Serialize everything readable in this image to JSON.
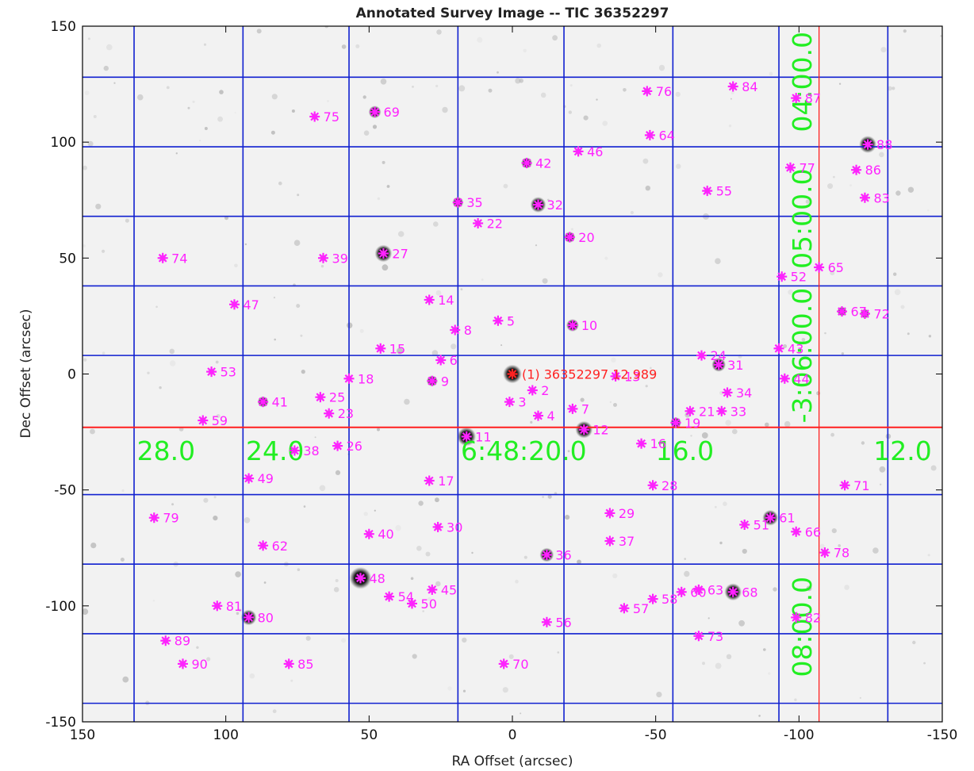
{
  "chart_data": {
    "type": "scatter",
    "title": "Annotated Survey Image -- TIC 36352297",
    "xlabel": "RA Offset (arcsec)",
    "ylabel": "Dec Offset (arcsec)",
    "xlim": [
      150,
      -150
    ],
    "ylim": [
      -150,
      150
    ],
    "x_reversed": true,
    "x_ticks": [
      150,
      100,
      50,
      0,
      -50,
      -100,
      -150
    ],
    "x_tick_labels": [
      "150",
      "100",
      "50",
      "0",
      "-50",
      "-100",
      "-150"
    ],
    "y_ticks": [
      150,
      100,
      50,
      0,
      -50,
      -100,
      -150
    ],
    "y_tick_labels": [
      "150",
      "100",
      "50",
      "0",
      "-50",
      "-100",
      "-150"
    ],
    "background": "grayscale sky survey image",
    "colors": {
      "sky": "#f2f2f2",
      "source_star": "#ff22ff",
      "target_star": "#ff2222",
      "ra_dec_grid": "#1020d0",
      "crosshair": "#ff2020",
      "grid_text": "#22ee22"
    },
    "target": {
      "label": "(1) 36352297 12.989",
      "x": 0,
      "y": 0
    },
    "crosshair": {
      "x": -107,
      "y": -23
    },
    "ra_grid_lines_x": [
      132,
      94,
      57,
      19,
      -18,
      -56,
      -93,
      -131
    ],
    "ra_grid_labels": [
      {
        "text": "28.0",
        "x": 131
      },
      {
        "text": "24.0",
        "x": 93
      },
      {
        "text": "6:48:20.0",
        "x": 18
      },
      {
        "text": "16.0",
        "x": -50
      },
      {
        "text": "12.0",
        "x": -126
      }
    ],
    "dec_grid_lines_y": [
      128,
      98,
      68,
      38,
      8,
      -52,
      -82,
      -112,
      -142
    ],
    "dec_grid_labels": [
      {
        "text": "04:00.0",
        "y": 126
      },
      {
        "text": "05:00.0",
        "y": 67
      },
      {
        "text": "-3:06:00.0",
        "y": 8
      },
      {
        "text": "08:00.0",
        "y": -109
      }
    ],
    "stars": [
      {
        "label": "2",
        "x": -7,
        "y": -7
      },
      {
        "label": "3",
        "x": 1,
        "y": -12
      },
      {
        "label": "4",
        "x": -9,
        "y": -18
      },
      {
        "label": "5",
        "x": 5,
        "y": 23
      },
      {
        "label": "6",
        "x": 25,
        "y": 6
      },
      {
        "label": "7",
        "x": -21,
        "y": -15
      },
      {
        "label": "8",
        "x": 20,
        "y": 19
      },
      {
        "label": "9",
        "x": 28,
        "y": -3
      },
      {
        "label": "10",
        "x": -21,
        "y": 21
      },
      {
        "label": "11",
        "x": 16,
        "y": -27
      },
      {
        "label": "12",
        "x": -25,
        "y": -24
      },
      {
        "label": "13",
        "x": -36,
        "y": -1
      },
      {
        "label": "14",
        "x": 29,
        "y": 32
      },
      {
        "label": "15",
        "x": 46,
        "y": 11
      },
      {
        "label": "16",
        "x": -45,
        "y": -30
      },
      {
        "label": "17",
        "x": 29,
        "y": -46
      },
      {
        "label": "18",
        "x": 57,
        "y": -2
      },
      {
        "label": "19",
        "x": -57,
        "y": -21
      },
      {
        "label": "20",
        "x": -20,
        "y": 59
      },
      {
        "label": "21",
        "x": -62,
        "y": -16
      },
      {
        "label": "22",
        "x": 12,
        "y": 65
      },
      {
        "label": "23",
        "x": 64,
        "y": -17
      },
      {
        "label": "24",
        "x": -66,
        "y": 8
      },
      {
        "label": "25",
        "x": 67,
        "y": -10
      },
      {
        "label": "26",
        "x": 61,
        "y": -31
      },
      {
        "label": "27",
        "x": 45,
        "y": 52
      },
      {
        "label": "28",
        "x": -49,
        "y": -48
      },
      {
        "label": "29",
        "x": -34,
        "y": -60
      },
      {
        "label": "30",
        "x": 26,
        "y": -66
      },
      {
        "label": "31",
        "x": -72,
        "y": 4
      },
      {
        "label": "32",
        "x": -9,
        "y": 73
      },
      {
        "label": "33",
        "x": -73,
        "y": -16
      },
      {
        "label": "34",
        "x": -75,
        "y": -8
      },
      {
        "label": "35",
        "x": 19,
        "y": 74
      },
      {
        "label": "36",
        "x": -12,
        "y": -78
      },
      {
        "label": "37",
        "x": -34,
        "y": -72
      },
      {
        "label": "38",
        "x": 76,
        "y": -33
      },
      {
        "label": "39",
        "x": 66,
        "y": 50
      },
      {
        "label": "40",
        "x": 50,
        "y": -69
      },
      {
        "label": "41",
        "x": 87,
        "y": -12
      },
      {
        "label": "42",
        "x": -5,
        "y": 91
      },
      {
        "label": "43",
        "x": -93,
        "y": 11
      },
      {
        "label": "44",
        "x": -95,
        "y": -2
      },
      {
        "label": "45",
        "x": 28,
        "y": -93
      },
      {
        "label": "46",
        "x": -23,
        "y": 96
      },
      {
        "label": "47",
        "x": 97,
        "y": 30
      },
      {
        "label": "48",
        "x": 53,
        "y": -88
      },
      {
        "label": "49",
        "x": 92,
        "y": -45
      },
      {
        "label": "50",
        "x": 35,
        "y": -99
      },
      {
        "label": "51",
        "x": -81,
        "y": -65
      },
      {
        "label": "52",
        "x": -94,
        "y": 42
      },
      {
        "label": "53",
        "x": 105,
        "y": 1
      },
      {
        "label": "54",
        "x": 43,
        "y": -96
      },
      {
        "label": "55",
        "x": -68,
        "y": 79
      },
      {
        "label": "56",
        "x": -12,
        "y": -107
      },
      {
        "label": "57",
        "x": -39,
        "y": -101
      },
      {
        "label": "58",
        "x": -49,
        "y": -97
      },
      {
        "label": "59",
        "x": 108,
        "y": -20
      },
      {
        "label": "60",
        "x": -59,
        "y": -94
      },
      {
        "label": "61",
        "x": -90,
        "y": -62
      },
      {
        "label": "62",
        "x": 87,
        "y": -74
      },
      {
        "label": "63",
        "x": -65,
        "y": -93
      },
      {
        "label": "64",
        "x": -48,
        "y": 103
      },
      {
        "label": "65",
        "x": -107,
        "y": 46
      },
      {
        "label": "66",
        "x": -99,
        "y": -68
      },
      {
        "label": "67",
        "x": -115,
        "y": 27
      },
      {
        "label": "68",
        "x": -77,
        "y": -94
      },
      {
        "label": "69",
        "x": 48,
        "y": 113
      },
      {
        "label": "70",
        "x": 3,
        "y": -125
      },
      {
        "label": "71",
        "x": -116,
        "y": -48
      },
      {
        "label": "72",
        "x": -123,
        "y": 26
      },
      {
        "label": "73",
        "x": -65,
        "y": -113
      },
      {
        "label": "74",
        "x": 122,
        "y": 50
      },
      {
        "label": "75",
        "x": 69,
        "y": 111
      },
      {
        "label": "76",
        "x": -47,
        "y": 122
      },
      {
        "label": "77",
        "x": -97,
        "y": 89
      },
      {
        "label": "78",
        "x": -109,
        "y": -77
      },
      {
        "label": "79",
        "x": 125,
        "y": -62
      },
      {
        "label": "80",
        "x": 92,
        "y": -105
      },
      {
        "label": "81",
        "x": 103,
        "y": -100
      },
      {
        "label": "82",
        "x": -99,
        "y": -105
      },
      {
        "label": "83",
        "x": -123,
        "y": 76
      },
      {
        "label": "84",
        "x": -77,
        "y": 124
      },
      {
        "label": "85",
        "x": 78,
        "y": -125
      },
      {
        "label": "86",
        "x": -120,
        "y": 88
      },
      {
        "label": "87",
        "x": -99,
        "y": 119
      },
      {
        "label": "88",
        "x": -124,
        "y": 99
      },
      {
        "label": "89",
        "x": 121,
        "y": -115
      },
      {
        "label": "90",
        "x": 115,
        "y": -125
      }
    ]
  }
}
